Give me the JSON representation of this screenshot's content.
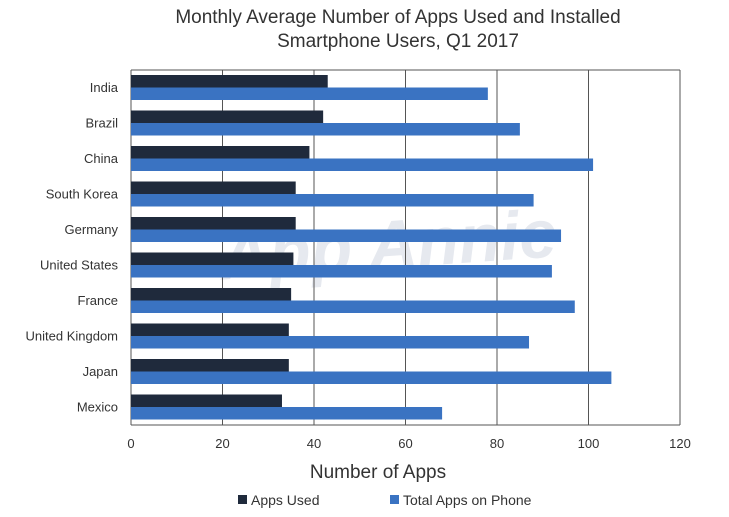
{
  "chart_data": {
    "type": "bar",
    "orientation": "horizontal",
    "title_lines": [
      "Monthly Average Number of Apps Used and Installed",
      "Smartphone Users, Q1 2017"
    ],
    "xlabel": "Number of Apps",
    "ylabel": "",
    "categories": [
      "India",
      "Brazil",
      "China",
      "South Korea",
      "Germany",
      "United States",
      "France",
      "United Kingdom",
      "Japan",
      "Mexico"
    ],
    "series": [
      {
        "name": "Apps Used",
        "color": "#1f2a3c",
        "values": [
          43,
          42,
          39,
          36,
          36,
          35.5,
          35,
          34.5,
          34.5,
          33
        ]
      },
      {
        "name": "Total Apps on Phone",
        "color": "#3a73c2",
        "values": [
          78,
          85,
          101,
          88,
          94,
          92,
          97,
          87,
          105,
          68
        ]
      }
    ],
    "xlim": [
      0,
      120
    ],
    "xticks": [
      0,
      20,
      40,
      60,
      80,
      100,
      120
    ],
    "grid": true,
    "legend_position": "bottom",
    "watermark": "App Annie"
  }
}
